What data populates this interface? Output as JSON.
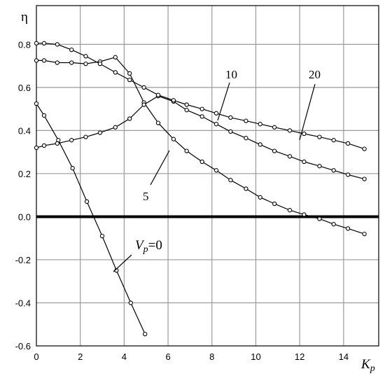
{
  "chart_data": {
    "type": "line",
    "xlabel": "K",
    "xlabel_sub": "p",
    "ylabel": "η",
    "xlim": [
      0,
      15.6
    ],
    "ylim": [
      -0.6,
      0.98
    ],
    "xticks": [
      "0",
      "2",
      "4",
      "6",
      "8",
      "10",
      "12",
      "14"
    ],
    "xtick_values": [
      0,
      2,
      4,
      6,
      8,
      10,
      12,
      14
    ],
    "yticks": [
      "-0.6",
      "-0.4",
      "-0.2",
      "0.0",
      "0.2",
      "0.4",
      "0.6",
      "0.8"
    ],
    "ytick_values": [
      -0.6,
      -0.4,
      -0.2,
      0.0,
      0.2,
      0.4,
      0.6,
      0.8
    ],
    "grid": true,
    "zero_line": true,
    "series": [
      {
        "name": "0",
        "x": [
          0,
          0.35,
          1.0,
          1.65,
          2.3,
          3.0,
          3.65,
          4.3,
          4.95
        ],
        "y": [
          0.525,
          0.47,
          0.355,
          0.225,
          0.07,
          -0.09,
          -0.25,
          -0.4,
          -0.545
        ]
      },
      {
        "name": "5",
        "x": [
          0,
          0.35,
          0.95,
          1.6,
          2.25,
          2.9,
          3.6,
          4.25,
          4.9,
          5.55,
          6.25,
          6.85,
          7.55,
          8.2,
          8.85,
          9.55,
          10.2,
          10.85,
          11.55,
          12.2,
          12.9,
          13.55,
          14.2,
          14.95
        ],
        "y": [
          0.725,
          0.725,
          0.715,
          0.715,
          0.71,
          0.72,
          0.74,
          0.665,
          0.53,
          0.435,
          0.36,
          0.305,
          0.255,
          0.215,
          0.17,
          0.13,
          0.09,
          0.06,
          0.03,
          0.01,
          -0.01,
          -0.035,
          -0.055,
          -0.08
        ]
      },
      {
        "name": "10",
        "x": [
          0,
          0.35,
          0.95,
          1.6,
          2.25,
          2.9,
          3.6,
          4.25,
          4.9,
          5.55,
          6.25,
          6.85,
          7.55,
          8.2,
          8.85,
          9.55,
          10.2,
          10.85,
          11.55,
          12.2,
          12.9,
          13.55,
          14.2,
          14.95
        ],
        "y": [
          0.32,
          0.33,
          0.34,
          0.355,
          0.37,
          0.39,
          0.415,
          0.455,
          0.52,
          0.56,
          0.535,
          0.495,
          0.465,
          0.43,
          0.395,
          0.365,
          0.335,
          0.305,
          0.28,
          0.255,
          0.235,
          0.215,
          0.195,
          0.175
        ]
      },
      {
        "name": "20",
        "x": [
          0,
          0.35,
          0.95,
          1.6,
          2.25,
          2.9,
          3.6,
          4.25,
          4.9,
          5.55,
          6.25,
          6.85,
          7.55,
          8.2,
          8.85,
          9.55,
          10.2,
          10.85,
          11.55,
          12.2,
          12.9,
          13.55,
          14.2,
          14.95
        ],
        "y": [
          0.805,
          0.805,
          0.8,
          0.775,
          0.745,
          0.71,
          0.67,
          0.635,
          0.6,
          0.565,
          0.54,
          0.52,
          0.5,
          0.48,
          0.46,
          0.445,
          0.43,
          0.415,
          0.4,
          0.385,
          0.37,
          0.355,
          0.34,
          0.315
        ]
      }
    ],
    "annotations": [
      {
        "prefix": "V",
        "sub": "p",
        "suffix": "=0",
        "series": "0"
      },
      {
        "text": "5",
        "series": "5"
      },
      {
        "text": "10",
        "series": "10"
      },
      {
        "text": "20",
        "series": "20"
      }
    ]
  }
}
